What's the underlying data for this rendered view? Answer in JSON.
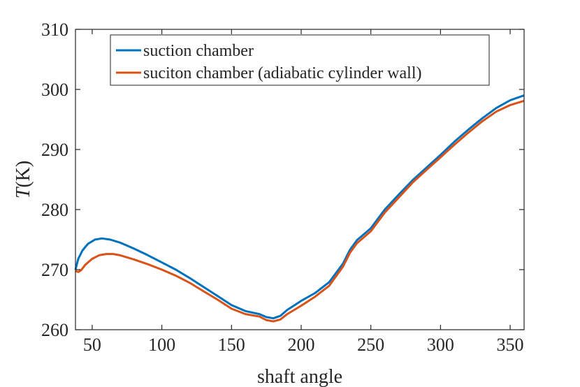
{
  "chart_data": {
    "type": "line",
    "xlabel": "shaft angle",
    "ylabel_italic": "T",
    "ylabel_rest": "(K)",
    "xlim": [
      38,
      360
    ],
    "ylim": [
      260,
      310
    ],
    "xticks": [
      50,
      100,
      150,
      200,
      250,
      300,
      350
    ],
    "yticks": [
      260,
      270,
      280,
      290,
      300,
      310
    ],
    "legend_position": "top-left",
    "grid": false,
    "series": [
      {
        "name": "suction chamber",
        "color": "#0072BD",
        "points": [
          [
            38,
            270.0
          ],
          [
            40,
            271.8
          ],
          [
            43,
            273.2
          ],
          [
            47,
            274.3
          ],
          [
            52,
            275.0
          ],
          [
            57,
            275.2
          ],
          [
            63,
            275.0
          ],
          [
            70,
            274.5
          ],
          [
            80,
            273.5
          ],
          [
            90,
            272.4
          ],
          [
            100,
            271.2
          ],
          [
            110,
            270.0
          ],
          [
            120,
            268.6
          ],
          [
            130,
            267.1
          ],
          [
            140,
            265.6
          ],
          [
            150,
            264.1
          ],
          [
            160,
            263.1
          ],
          [
            170,
            262.6
          ],
          [
            175,
            262.1
          ],
          [
            180,
            261.9
          ],
          [
            185,
            262.3
          ],
          [
            190,
            263.3
          ],
          [
            200,
            264.8
          ],
          [
            210,
            266.1
          ],
          [
            220,
            267.9
          ],
          [
            230,
            271.0
          ],
          [
            235,
            273.3
          ],
          [
            240,
            274.9
          ],
          [
            250,
            276.9
          ],
          [
            260,
            280.0
          ],
          [
            270,
            282.5
          ],
          [
            280,
            284.9
          ],
          [
            290,
            287.0
          ],
          [
            300,
            289.1
          ],
          [
            310,
            291.3
          ],
          [
            320,
            293.3
          ],
          [
            330,
            295.2
          ],
          [
            340,
            296.9
          ],
          [
            350,
            298.2
          ],
          [
            360,
            299.0
          ]
        ]
      },
      {
        "name": "suciton chamber (adiabatic cylinder wall)",
        "color": "#D95319",
        "points": [
          [
            38,
            269.8
          ],
          [
            40,
            269.6
          ],
          [
            42,
            269.9
          ],
          [
            45,
            270.8
          ],
          [
            50,
            271.8
          ],
          [
            55,
            272.4
          ],
          [
            60,
            272.6
          ],
          [
            65,
            272.6
          ],
          [
            70,
            272.4
          ],
          [
            80,
            271.7
          ],
          [
            90,
            270.9
          ],
          [
            100,
            270.0
          ],
          [
            110,
            269.0
          ],
          [
            120,
            267.8
          ],
          [
            130,
            266.4
          ],
          [
            140,
            265.0
          ],
          [
            150,
            263.5
          ],
          [
            160,
            262.6
          ],
          [
            170,
            262.2
          ],
          [
            175,
            261.6
          ],
          [
            180,
            261.4
          ],
          [
            185,
            261.7
          ],
          [
            190,
            262.6
          ],
          [
            200,
            264.0
          ],
          [
            210,
            265.5
          ],
          [
            220,
            267.3
          ],
          [
            230,
            270.5
          ],
          [
            235,
            272.8
          ],
          [
            240,
            274.4
          ],
          [
            250,
            276.4
          ],
          [
            260,
            279.5
          ],
          [
            270,
            282.0
          ],
          [
            280,
            284.5
          ],
          [
            290,
            286.6
          ],
          [
            300,
            288.7
          ],
          [
            310,
            290.8
          ],
          [
            320,
            292.8
          ],
          [
            330,
            294.7
          ],
          [
            340,
            296.3
          ],
          [
            350,
            297.4
          ],
          [
            360,
            298.1
          ]
        ]
      }
    ]
  }
}
